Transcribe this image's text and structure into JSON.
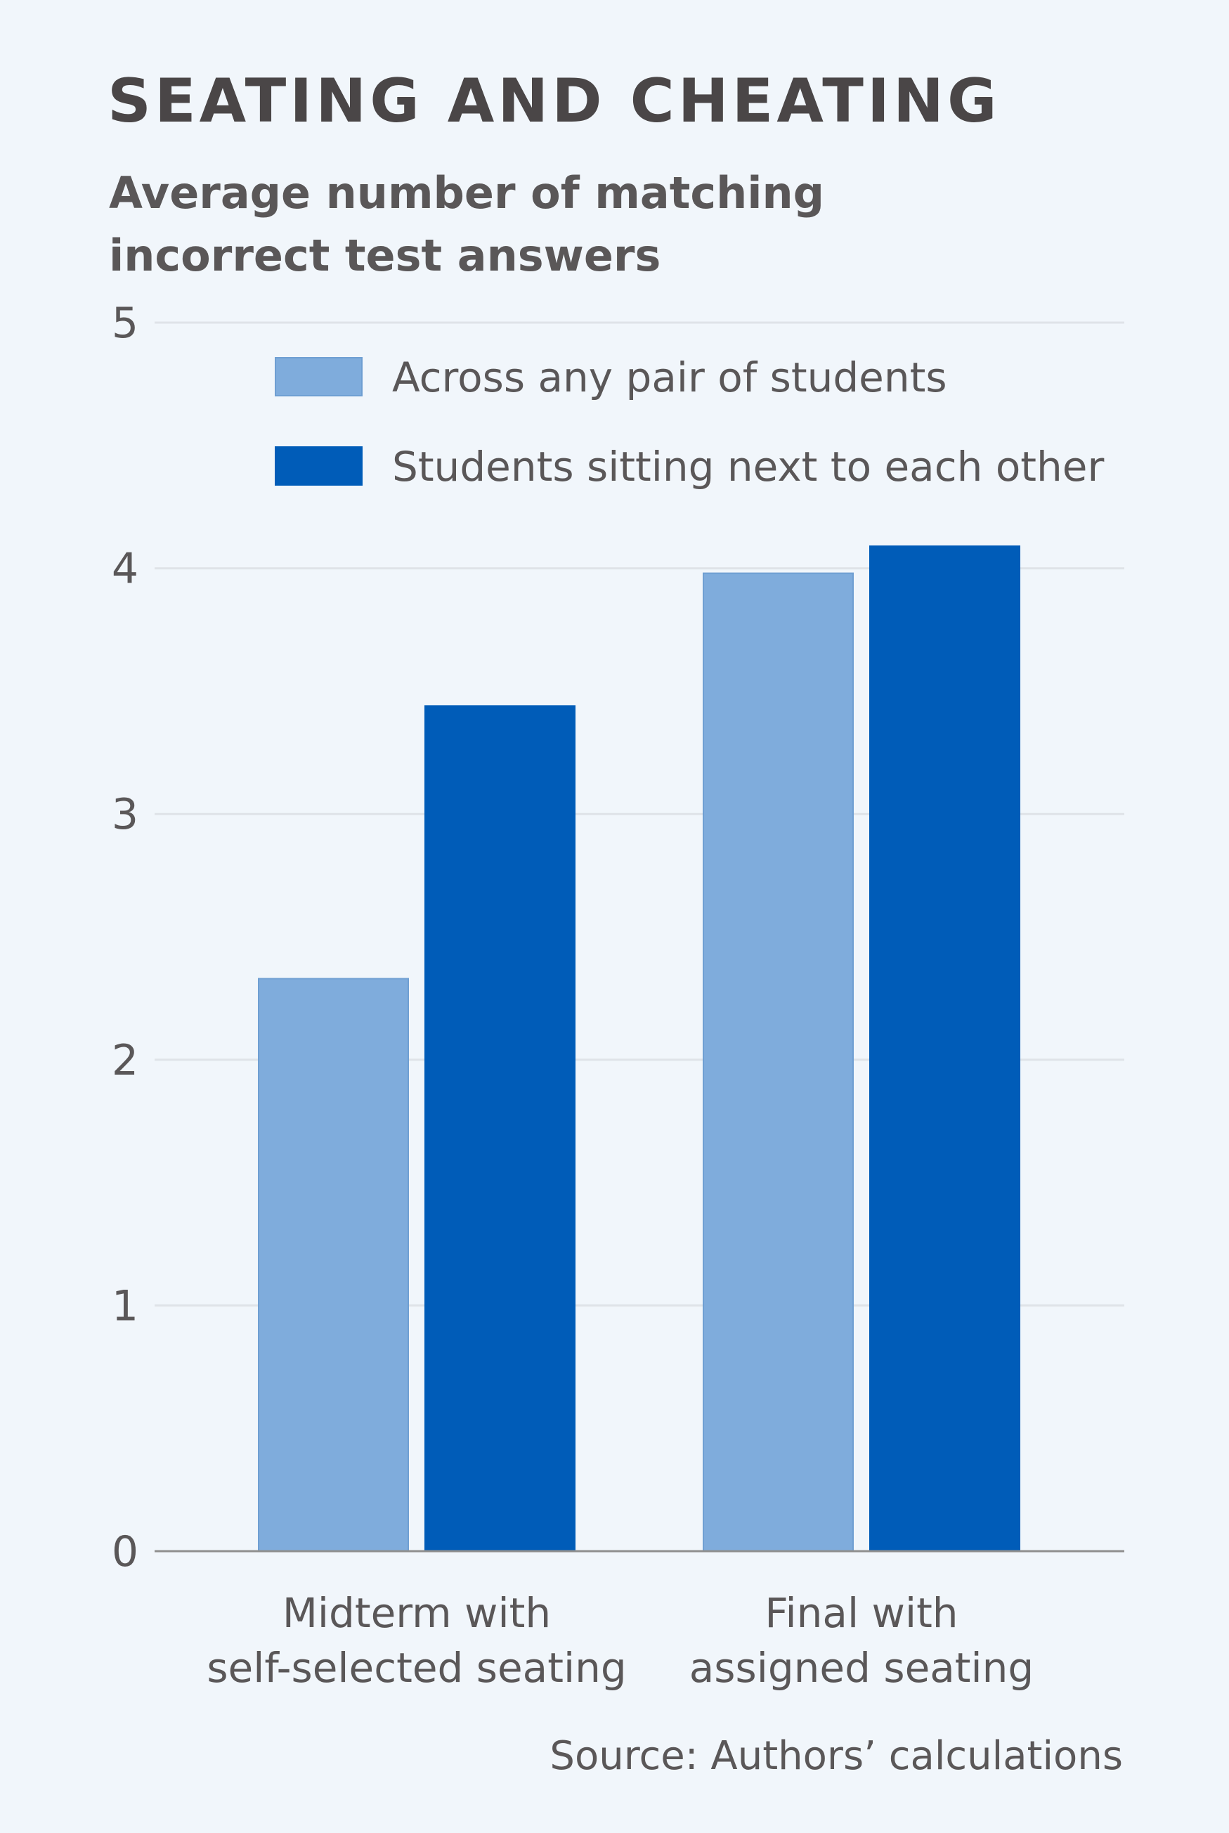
{
  "chart_data": {
    "type": "bar",
    "title": "SEATING AND CHEATING",
    "subtitle": [
      "Average number of matching",
      "incorrect test answers"
    ],
    "categories": [
      [
        "Midterm with",
        "self-selected seating"
      ],
      [
        "Final with",
        "assigned seating"
      ]
    ],
    "series": [
      {
        "name": "Across any pair of students",
        "values": [
          2.33,
          3.98
        ],
        "color": "#7facdc"
      },
      {
        "name": "Students sitting next to each other",
        "values": [
          3.44,
          4.09
        ],
        "color": "#005cb8"
      }
    ],
    "ylim": [
      0,
      5
    ],
    "yticks": [
      0,
      1,
      2,
      3,
      4,
      5
    ],
    "grid": true,
    "legend_position": "top",
    "source": "Source: Authors’ calculations"
  }
}
